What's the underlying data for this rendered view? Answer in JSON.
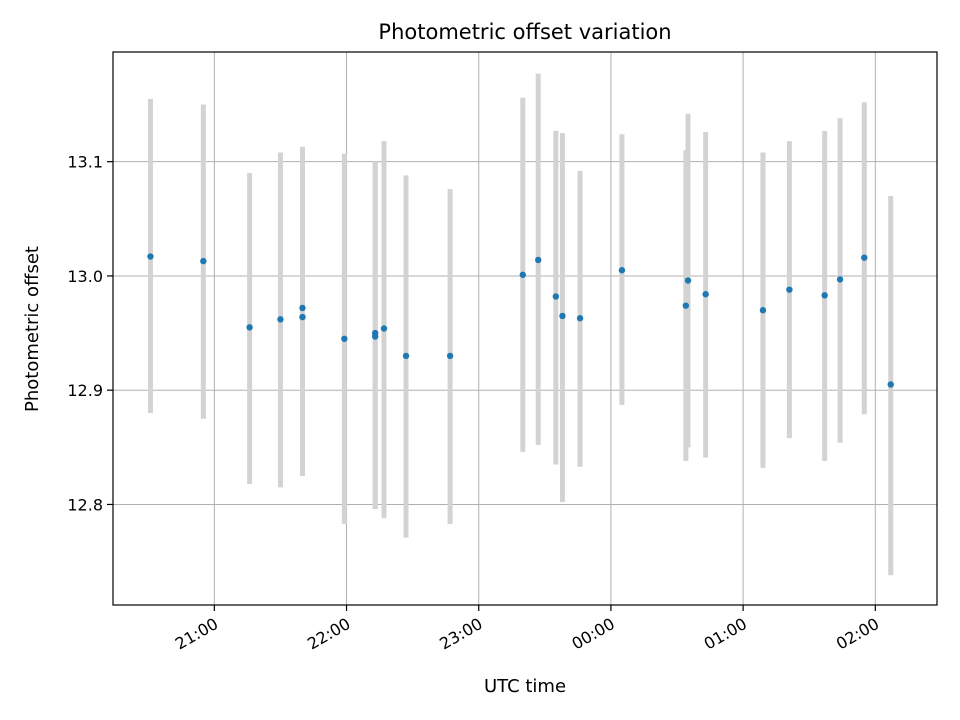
{
  "chart_data": {
    "type": "scatter",
    "title": "Photometric offset variation",
    "xlabel": "UTC time",
    "ylabel": "Photometric offset",
    "xlim": [
      "20:14",
      "02:28"
    ],
    "ylim": [
      12.712,
      13.196
    ],
    "x_ticks": [
      "21:00",
      "22:00",
      "23:00",
      "00:00",
      "01:00",
      "02:00"
    ],
    "y_ticks": [
      12.8,
      12.9,
      13.0,
      13.1
    ],
    "y_tick_labels": [
      "12.8",
      "12.9",
      "13.0",
      "13.1"
    ],
    "grid": true,
    "colors": {
      "point": "#1f77b4",
      "error_bar": "#d3d3d3",
      "grid": "#b0b0b0"
    },
    "points": [
      {
        "x": "20:31",
        "y": 13.017,
        "ylo": 12.88,
        "yhi": 13.155
      },
      {
        "x": "20:55",
        "y": 13.013,
        "ylo": 12.875,
        "yhi": 13.15
      },
      {
        "x": "21:16",
        "y": 12.955,
        "ylo": 12.818,
        "yhi": 13.09
      },
      {
        "x": "21:30",
        "y": 12.962,
        "ylo": 12.815,
        "yhi": 13.108
      },
      {
        "x": "21:40",
        "y": 12.964,
        "ylo": 12.825,
        "yhi": 13.113
      },
      {
        "x": "21:40",
        "y": 12.972,
        "ylo": 12.825,
        "yhi": 13.113
      },
      {
        "x": "21:59",
        "y": 12.945,
        "ylo": 12.783,
        "yhi": 13.107
      },
      {
        "x": "22:13",
        "y": 12.947,
        "ylo": 12.796,
        "yhi": 13.1
      },
      {
        "x": "22:13",
        "y": 12.95,
        "ylo": 12.796,
        "yhi": 13.1
      },
      {
        "x": "22:17",
        "y": 12.954,
        "ylo": 12.788,
        "yhi": 13.118
      },
      {
        "x": "22:27",
        "y": 12.93,
        "ylo": 12.771,
        "yhi": 13.088
      },
      {
        "x": "22:47",
        "y": 12.93,
        "ylo": 12.783,
        "yhi": 13.076
      },
      {
        "x": "23:20",
        "y": 13.001,
        "ylo": 12.846,
        "yhi": 13.156
      },
      {
        "x": "23:27",
        "y": 13.014,
        "ylo": 12.852,
        "yhi": 13.177
      },
      {
        "x": "23:35",
        "y": 12.982,
        "ylo": 12.835,
        "yhi": 13.127
      },
      {
        "x": "23:38",
        "y": 12.965,
        "ylo": 12.802,
        "yhi": 13.125
      },
      {
        "x": "23:46",
        "y": 12.963,
        "ylo": 12.833,
        "yhi": 13.092
      },
      {
        "x": "00:05",
        "y": 13.005,
        "ylo": 12.887,
        "yhi": 13.124
      },
      {
        "x": "00:34",
        "y": 12.974,
        "ylo": 12.838,
        "yhi": 13.11
      },
      {
        "x": "00:35",
        "y": 12.996,
        "ylo": 12.85,
        "yhi": 13.142
      },
      {
        "x": "00:43",
        "y": 12.984,
        "ylo": 12.841,
        "yhi": 13.126
      },
      {
        "x": "01:09",
        "y": 12.97,
        "ylo": 12.832,
        "yhi": 13.108
      },
      {
        "x": "01:21",
        "y": 12.988,
        "ylo": 12.858,
        "yhi": 13.118
      },
      {
        "x": "01:37",
        "y": 12.983,
        "ylo": 12.838,
        "yhi": 13.127
      },
      {
        "x": "01:44",
        "y": 12.997,
        "ylo": 12.854,
        "yhi": 13.138
      },
      {
        "x": "01:55",
        "y": 13.016,
        "ylo": 12.879,
        "yhi": 13.152
      },
      {
        "x": "02:07",
        "y": 12.905,
        "ylo": 12.738,
        "yhi": 13.07
      }
    ]
  }
}
